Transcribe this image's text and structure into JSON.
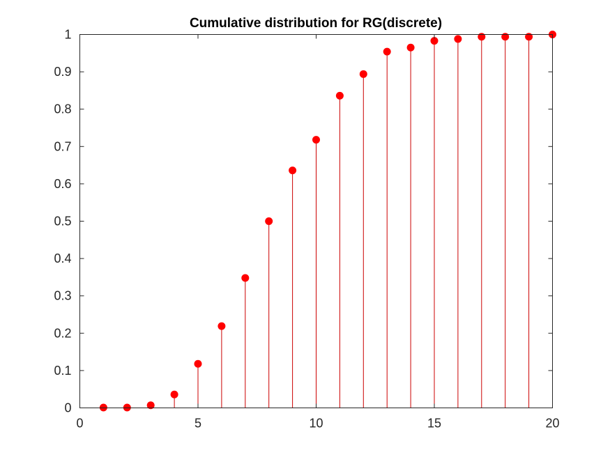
{
  "chart_data": {
    "type": "scatter",
    "style": "stem",
    "title": "Cumulative distribution for RG(discrete)",
    "xlabel": "",
    "ylabel": "",
    "xlim": [
      0,
      20
    ],
    "ylim": [
      0,
      1
    ],
    "xticks": [
      0,
      5,
      10,
      15,
      20
    ],
    "xtick_labels": [
      "0",
      "5",
      "10",
      "15",
      "20"
    ],
    "yticks": [
      0,
      0.1,
      0.2,
      0.3,
      0.4,
      0.5,
      0.6,
      0.7,
      0.8,
      0.9,
      1
    ],
    "ytick_labels": [
      "0",
      "0.1",
      "0.2",
      "0.3",
      "0.4",
      "0.5",
      "0.6",
      "0.7",
      "0.8",
      "0.9",
      "1"
    ],
    "grid": false,
    "box": true,
    "color": "#ff0000",
    "stem_color": "#cc0000",
    "series": [
      {
        "x": [
          1,
          2,
          3,
          4,
          5,
          6,
          7,
          8,
          9,
          10,
          11,
          12,
          13,
          14,
          15,
          16,
          17,
          18,
          19,
          20
        ],
        "values": [
          0.001,
          0.001,
          0.007,
          0.036,
          0.118,
          0.219,
          0.348,
          0.5,
          0.636,
          0.718,
          0.836,
          0.894,
          0.954,
          0.965,
          0.983,
          0.988,
          0.994,
          0.994,
          0.994,
          1.0
        ]
      }
    ]
  }
}
